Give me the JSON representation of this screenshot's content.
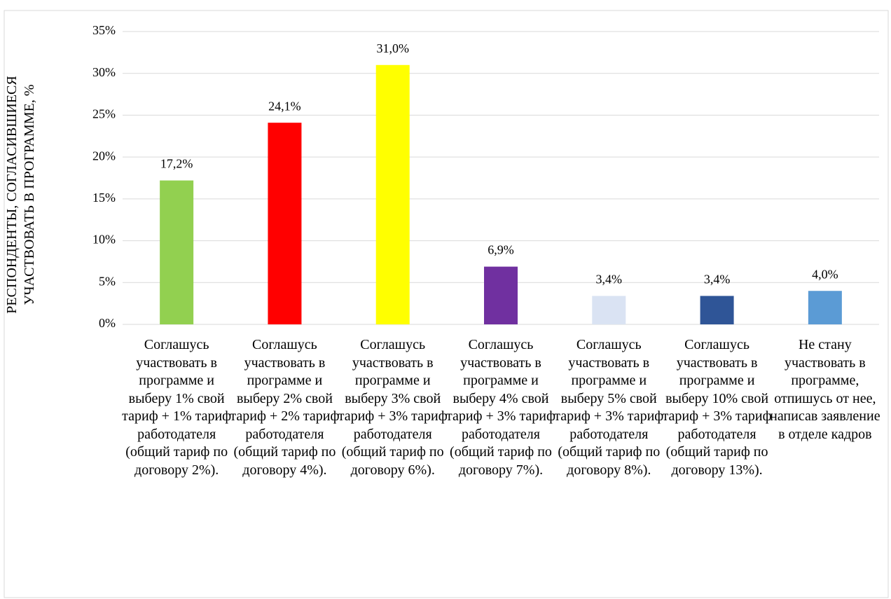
{
  "chart_data": {
    "type": "bar",
    "y_axis_label": "РЕСПОНДЕНТЫ, СОГЛАСИВШИЕСЯ УЧАСТВОВАТЬ В ПРОГРАММЕ, %",
    "categories": [
      "Соглашусь участвовать в программе и выберу 1% свой тариф + 1% тариф работодателя (общий тариф по договору 2%).",
      "Соглашусь участвовать в программе и выберу 2% свой тариф + 2% тариф работодателя (общий тариф по договору 4%).",
      "Соглашусь участвовать в программе и выберу 3% свой тариф + 3% тариф работодателя (общий тариф по договору 6%).",
      "Соглашусь участвовать в программе и выберу 4% свой тариф + 3% тариф работодателя (общий тариф по договору 7%).",
      "Соглашусь участвовать в программе и выберу 5% свой тариф + 3% тариф работодателя (общий тариф по договору 8%).",
      "Соглашусь участвовать в программе и выберу 10% свой тариф + 3% тариф работодателя (общий тариф по договору 13%).",
      "Не стану участвовать в программе, отпишусь от нее, написав заявление в отделе кадров"
    ],
    "values": [
      17.2,
      24.1,
      31.0,
      6.9,
      3.4,
      3.4,
      4.0
    ],
    "value_labels": [
      "17,2%",
      "24,1%",
      "31,0%",
      "6,9%",
      "3,4%",
      "3,4%",
      "4,0%"
    ],
    "colors": [
      "#92d050",
      "#ff0000",
      "#ffff00",
      "#7030a0",
      "#dae3f3",
      "#2f5597",
      "#5b9bd5"
    ],
    "ylim": [
      0,
      35
    ],
    "yticks": [
      {
        "value": 0,
        "label": "0%"
      },
      {
        "value": 5,
        "label": "5%"
      },
      {
        "value": 10,
        "label": "10%"
      },
      {
        "value": 15,
        "label": "15%"
      },
      {
        "value": 20,
        "label": "20%"
      },
      {
        "value": 25,
        "label": "25%"
      },
      {
        "value": 30,
        "label": "30%"
      },
      {
        "value": 35,
        "label": "35%"
      }
    ],
    "grid": true
  }
}
